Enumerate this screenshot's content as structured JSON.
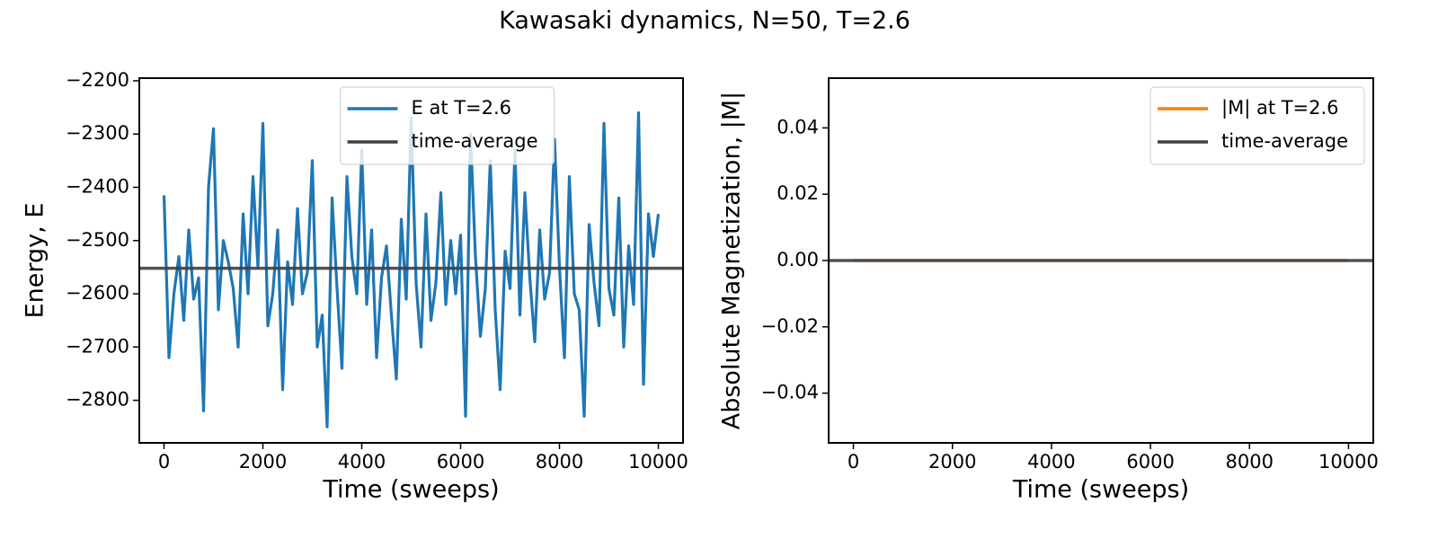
{
  "title": "Kawasaki dynamics, N=50, T=2.6",
  "chart_data": [
    {
      "type": "line",
      "xlabel": "Time (sweeps)",
      "ylabel": "Energy, E",
      "x": [
        0,
        100,
        200,
        300,
        400,
        500,
        600,
        700,
        800,
        900,
        1000,
        1100,
        1200,
        1300,
        1400,
        1500,
        1600,
        1700,
        1800,
        1900,
        2000,
        2100,
        2200,
        2300,
        2400,
        2500,
        2600,
        2700,
        2800,
        2900,
        3000,
        3100,
        3200,
        3300,
        3400,
        3500,
        3600,
        3700,
        3800,
        3900,
        4000,
        4100,
        4200,
        4300,
        4400,
        4500,
        4600,
        4700,
        4800,
        4900,
        5000,
        5100,
        5200,
        5300,
        5400,
        5500,
        5600,
        5700,
        5800,
        5900,
        6000,
        6100,
        6200,
        6300,
        6400,
        6500,
        6600,
        6700,
        6800,
        6900,
        7000,
        7100,
        7200,
        7300,
        7400,
        7500,
        7600,
        7700,
        7800,
        7900,
        8000,
        8100,
        8200,
        8300,
        8400,
        8500,
        8600,
        8700,
        8800,
        8900,
        9000,
        9100,
        9200,
        9300,
        9400,
        9500,
        9600,
        9700,
        9800,
        9900,
        10000
      ],
      "series": [
        {
          "name": "E at T=2.6",
          "color": "#1f77b4",
          "values": [
            -2415,
            -2720,
            -2600,
            -2530,
            -2650,
            -2480,
            -2610,
            -2570,
            -2820,
            -2400,
            -2290,
            -2630,
            -2500,
            -2540,
            -2590,
            -2700,
            -2450,
            -2600,
            -2380,
            -2550,
            -2280,
            -2660,
            -2600,
            -2480,
            -2780,
            -2540,
            -2620,
            -2440,
            -2600,
            -2560,
            -2350,
            -2700,
            -2640,
            -2850,
            -2420,
            -2590,
            -2740,
            -2380,
            -2530,
            -2600,
            -2330,
            -2620,
            -2480,
            -2720,
            -2570,
            -2510,
            -2640,
            -2760,
            -2460,
            -2610,
            -2270,
            -2580,
            -2700,
            -2450,
            -2650,
            -2580,
            -2410,
            -2620,
            -2500,
            -2600,
            -2490,
            -2830,
            -2300,
            -2530,
            -2680,
            -2590,
            -2350,
            -2630,
            -2780,
            -2520,
            -2590,
            -2330,
            -2640,
            -2410,
            -2570,
            -2690,
            -2480,
            -2610,
            -2560,
            -2310,
            -2550,
            -2720,
            -2380,
            -2600,
            -2630,
            -2830,
            -2470,
            -2580,
            -2660,
            -2280,
            -2590,
            -2640,
            -2420,
            -2700,
            -2510,
            -2620,
            -2260,
            -2770,
            -2450,
            -2530,
            -2450
          ]
        }
      ],
      "hline": {
        "name": "time-average",
        "color": "#404040",
        "value": -2552
      },
      "legend": "upper center",
      "xlim": [
        -500,
        10500
      ],
      "ylim": [
        -2880,
        -2195
      ],
      "xticks": [
        0,
        2000,
        4000,
        6000,
        8000,
        10000
      ],
      "yticks": [
        {
          "value": -2800,
          "label": "−2800"
        },
        {
          "value": -2700,
          "label": "−2700"
        },
        {
          "value": -2600,
          "label": "−2600"
        },
        {
          "value": -2500,
          "label": "−2500"
        },
        {
          "value": -2400,
          "label": "−2400"
        },
        {
          "value": -2300,
          "label": "−2300"
        },
        {
          "value": -2200,
          "label": "−2200"
        }
      ]
    },
    {
      "type": "line",
      "xlabel": "Time (sweeps)",
      "ylabel": "Absolute Magnetization, |M|",
      "x": [
        0,
        10000
      ],
      "series": [
        {
          "name": "|M| at T=2.6",
          "color": "#ff7f0e",
          "values": [
            0,
            0
          ]
        }
      ],
      "hline": {
        "name": "time-average",
        "color": "#404040",
        "value": 0
      },
      "legend": "upper right",
      "xlim": [
        -500,
        10500
      ],
      "ylim": [
        -0.055,
        0.055
      ],
      "xticks": [
        0,
        2000,
        4000,
        6000,
        8000,
        10000
      ],
      "yticks": [
        {
          "value": -0.04,
          "label": "−0.04"
        },
        {
          "value": -0.02,
          "label": "−0.02"
        },
        {
          "value": 0,
          "label": "0.00"
        },
        0.02,
        0.04
      ]
    }
  ]
}
